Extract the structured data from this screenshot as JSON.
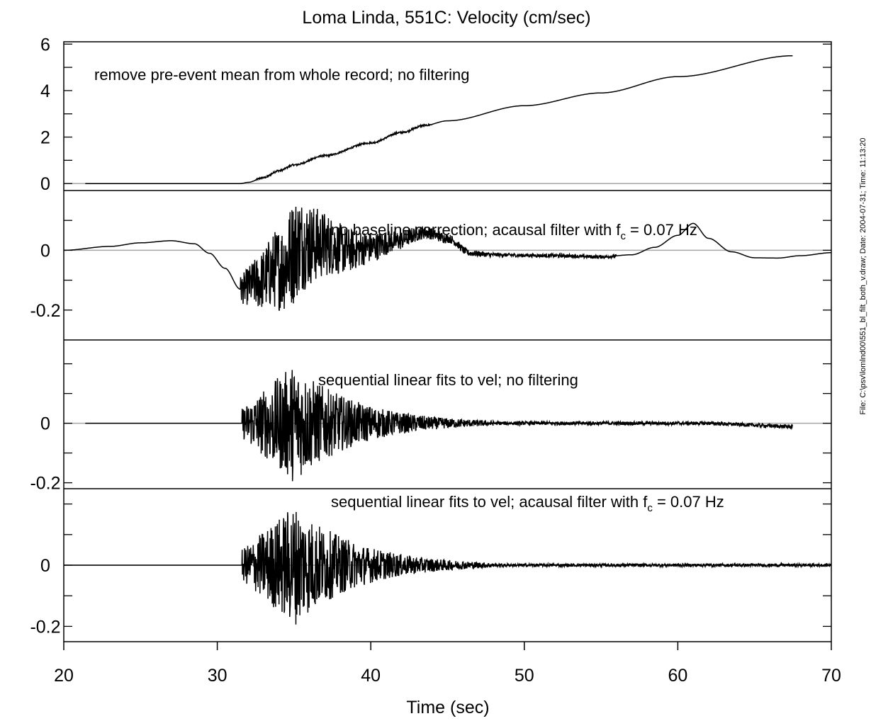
{
  "chart_data": {
    "type": "line",
    "title": "Loma Linda, 551C: Velocity (cm/sec)",
    "xlabel": "Time (sec)",
    "xlim": [
      20,
      70
    ],
    "xticks": [
      20,
      30,
      40,
      50,
      60,
      70
    ],
    "xtick_labels": [
      "20",
      "30",
      "40",
      "50",
      "60",
      "70"
    ],
    "side_note": "File: C:\\psv\\lomlnd00\\551_bl_filt_both_v.draw; Date: 2004-07-31; Time: 11:13:20",
    "zero_line_color": "#a6a6a6",
    "line_color": "#000000",
    "panels": [
      {
        "annotation": "remove pre-event mean from whole record; no filtering",
        "ylim": [
          -0.3,
          6.1
        ],
        "yticks": [
          0,
          2,
          4,
          6
        ],
        "ytick_labels": [
          "0",
          "2",
          "4",
          "6"
        ],
        "minor_yticks": [
          1,
          3,
          5
        ],
        "series": {
          "mode": "anchors",
          "anchors": [
            [
              21.4,
              0
            ],
            [
              31.5,
              0
            ],
            [
              32.0,
              0.05
            ],
            [
              33.0,
              0.25
            ],
            [
              34.0,
              0.55
            ],
            [
              35.0,
              0.8
            ],
            [
              37.0,
              1.2
            ],
            [
              40.0,
              1.75
            ],
            [
              42.0,
              2.2
            ],
            [
              43.5,
              2.5
            ],
            [
              45.0,
              2.7
            ],
            [
              50.0,
              3.35
            ],
            [
              55.0,
              3.9
            ],
            [
              60.0,
              4.6
            ],
            [
              67.5,
              5.5
            ]
          ],
          "noise_start": 32.5,
          "noise_end": 44.0,
          "noise_amp": 0.07
        }
      },
      {
        "annotation": "no baseline correction; acausal filter with f",
        "annotation_sub": "c",
        "annotation_tail": " = 0.07 Hz",
        "ylim": [
          -0.3,
          0.2
        ],
        "yticks": [
          -0.2,
          0
        ],
        "ytick_labels": [
          "-0.2",
          "0"
        ],
        "minor_yticks": [
          -0.1,
          0.1
        ],
        "series": {
          "mode": "anchors+burst",
          "anchors": [
            [
              20.0,
              0
            ],
            [
              23.0,
              0.013
            ],
            [
              25.0,
              0.025
            ],
            [
              27.0,
              0.032
            ],
            [
              28.5,
              0.022
            ],
            [
              29.5,
              -0.01
            ],
            [
              30.5,
              -0.06
            ],
            [
              31.5,
              -0.13
            ],
            [
              32.5,
              -0.11
            ],
            [
              34.0,
              -0.06
            ],
            [
              35.5,
              0.02
            ],
            [
              37.0,
              0.02
            ],
            [
              38.5,
              0.0
            ],
            [
              40.0,
              0.01
            ],
            [
              41.5,
              0.03
            ],
            [
              43.5,
              0.06
            ],
            [
              45.0,
              0.04
            ],
            [
              46.5,
              -0.01
            ],
            [
              48.0,
              -0.015
            ],
            [
              50.0,
              -0.017
            ],
            [
              52.0,
              -0.018
            ],
            [
              55.0,
              -0.022
            ],
            [
              57.0,
              -0.015
            ],
            [
              58.5,
              0.01
            ],
            [
              60.0,
              0.05
            ],
            [
              61.0,
              0.09
            ],
            [
              62.0,
              0.04
            ],
            [
              63.5,
              -0.005
            ],
            [
              65.0,
              -0.025
            ],
            [
              66.5,
              -0.026
            ],
            [
              68.0,
              -0.018
            ],
            [
              70.0,
              -0.008
            ]
          ],
          "burst_start": 31.5,
          "burst_peak": 35.0,
          "burst_end": 48.0,
          "burst_amp": 0.18,
          "tail_amp": 0.006,
          "tail_end": 56.0
        }
      },
      {
        "annotation": "sequential linear fits to vel; no filtering",
        "ylim": [
          -0.22,
          0.28
        ],
        "yticks": [
          -0.2,
          0
        ],
        "ytick_labels": [
          "-0.2",
          "0"
        ],
        "minor_yticks": [
          -0.1,
          0.1,
          0.2
        ],
        "series": {
          "mode": "burst",
          "start": 21.4,
          "end": 67.5,
          "burst_start": 31.6,
          "burst_peak": 35.0,
          "burst_end": 48.0,
          "burst_amp": 0.2,
          "tail_amp": 0.006,
          "drift_start": 62.0,
          "drift_end_value": -0.012
        }
      },
      {
        "annotation": "sequential linear fits to vel; acausal filter with f",
        "annotation_sub": "c",
        "annotation_tail": " = 0.07 Hz",
        "ylim": [
          -0.25,
          0.25
        ],
        "yticks": [
          -0.2,
          0
        ],
        "ytick_labels": [
          "-0.2",
          "0"
        ],
        "minor_yticks": [
          -0.1,
          0.1,
          0.2
        ],
        "series": {
          "mode": "burst",
          "start": 20.0,
          "end": 70.0,
          "burst_start": 31.6,
          "burst_peak": 35.0,
          "burst_end": 48.0,
          "burst_amp": 0.2,
          "tail_amp": 0.005,
          "drift_start": 70.0,
          "drift_end_value": 0
        }
      }
    ]
  }
}
